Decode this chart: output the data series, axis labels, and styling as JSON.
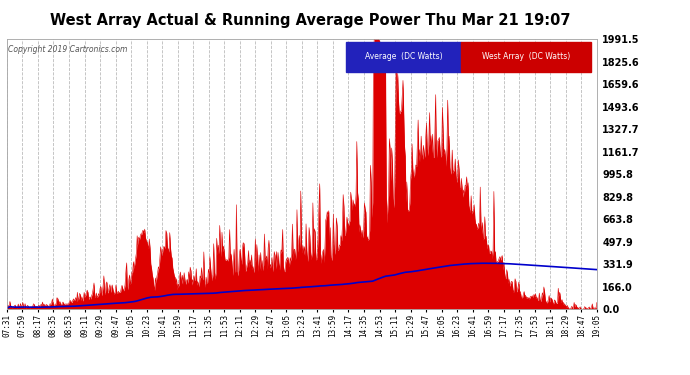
{
  "title": "West Array Actual & Running Average Power Thu Mar 21 19:07",
  "copyright": "Copyright 2019 Cartronics.com",
  "ylabel_right_ticks": [
    0.0,
    166.0,
    331.9,
    497.9,
    663.8,
    829.8,
    995.8,
    1161.7,
    1327.7,
    1493.6,
    1659.6,
    1825.6,
    1991.5
  ],
  "ymax": 1991.5,
  "ymin": 0.0,
  "plot_bg_color": "#ffffff",
  "fig_bg_color": "#ffffff",
  "grid_color": "#aaaaaa",
  "west_array_color": "#dd0000",
  "average_color": "#0000cc",
  "legend_avg_bg": "#2222bb",
  "legend_west_bg": "#cc0000",
  "xtick_labels": [
    "07:31",
    "07:59",
    "08:17",
    "08:35",
    "08:53",
    "09:11",
    "09:29",
    "09:47",
    "10:05",
    "10:23",
    "10:41",
    "10:59",
    "11:17",
    "11:35",
    "11:53",
    "12:11",
    "12:29",
    "12:47",
    "13:05",
    "13:23",
    "13:41",
    "13:59",
    "14:17",
    "14:35",
    "14:53",
    "15:11",
    "15:29",
    "15:47",
    "16:05",
    "16:23",
    "16:41",
    "16:59",
    "17:17",
    "17:35",
    "17:53",
    "18:11",
    "18:29",
    "18:47",
    "19:05"
  ]
}
